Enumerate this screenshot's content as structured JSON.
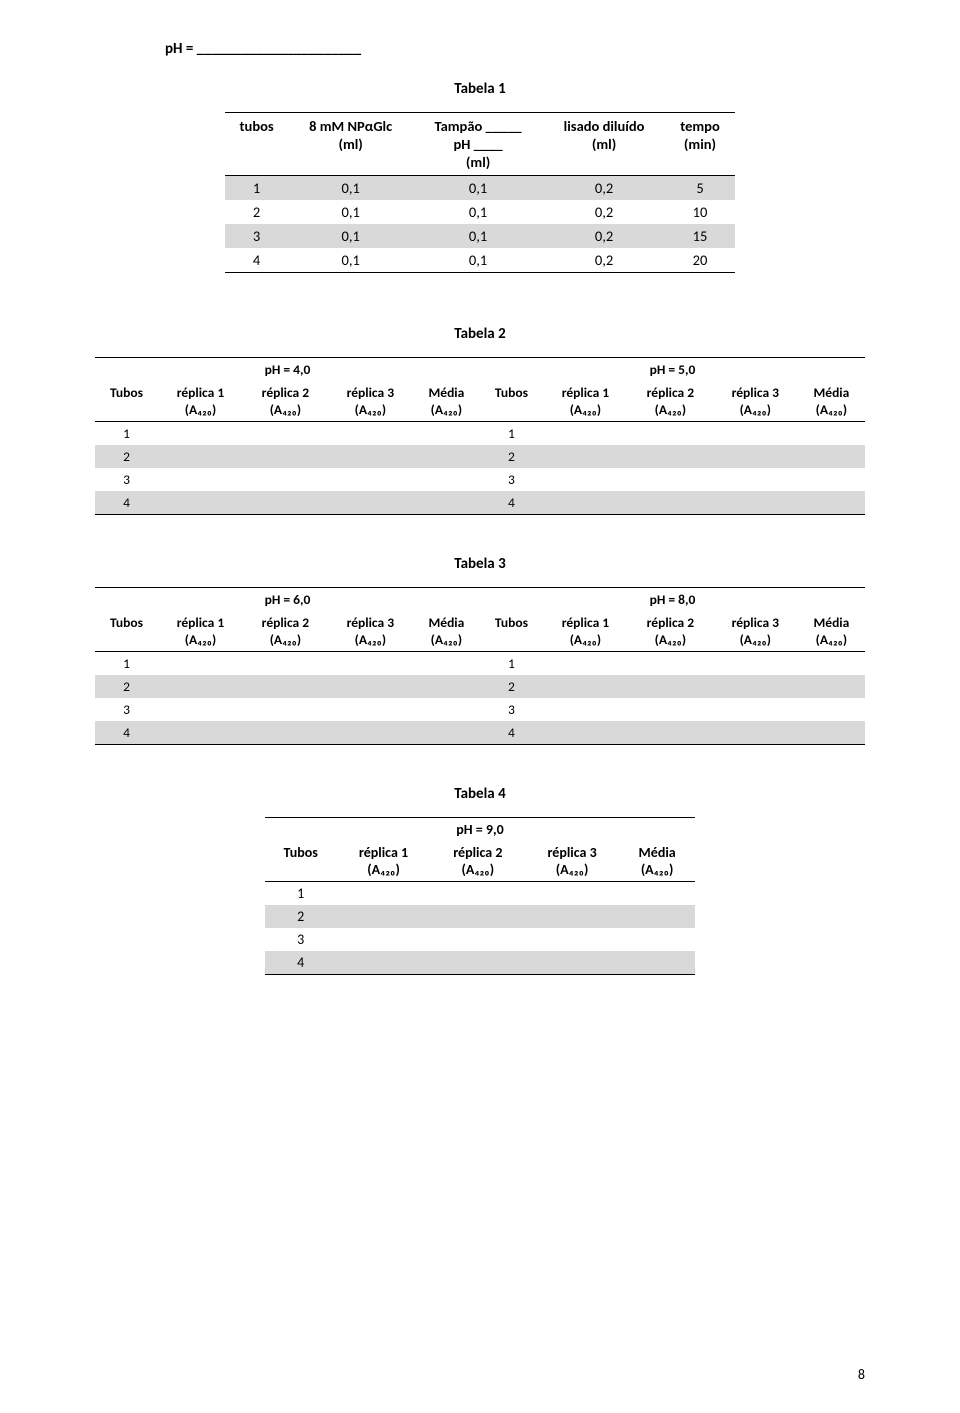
{
  "ph_label": "pH = ______________________",
  "page_number": "8",
  "table1": {
    "caption": "Tabela 1",
    "headers": [
      {
        "l1": "tubos",
        "l2": "",
        "l3": ""
      },
      {
        "l1": "8 mM NPαGlc",
        "l2": "(ml)",
        "l3": ""
      },
      {
        "l1": "Tampão _____",
        "l2": "pH ____",
        "l3": "(ml)"
      },
      {
        "l1": "lisado diluído",
        "l2": "(ml)",
        "l3": ""
      },
      {
        "l1": "tempo",
        "l2": "(min)",
        "l3": ""
      }
    ],
    "rows": [
      [
        "1",
        "0,1",
        "0,1",
        "0,2",
        "5"
      ],
      [
        "2",
        "0,1",
        "0,1",
        "0,2",
        "10"
      ],
      [
        "3",
        "0,1",
        "0,1",
        "0,2",
        "15"
      ],
      [
        "4",
        "0,1",
        "0,1",
        "0,2",
        "20"
      ]
    ],
    "gray_rows": [
      0,
      2
    ]
  },
  "wide_tables": [
    {
      "caption": "Tabela 2",
      "left_ph": "pH = 4,0",
      "right_ph": "pH = 5,0"
    },
    {
      "caption": "Tabela 3",
      "left_ph": "pH = 6,0",
      "right_ph": "pH = 8,0"
    }
  ],
  "wide_col_headers_left": [
    {
      "l1": "Tubos",
      "l2": ""
    },
    {
      "l1": "réplica 1",
      "l2": "(A₄₂₀)"
    },
    {
      "l1": "réplica 2",
      "l2": "(A₄₂₀)"
    },
    {
      "l1": "réplica 3",
      "l2": "(A₄₂₀)"
    },
    {
      "l1": "Média",
      "l2": "(A₄₂₀)"
    }
  ],
  "wide_col_headers_right": [
    {
      "l1": "Tubos",
      "l2": ""
    },
    {
      "l1": "réplica 1",
      "l2": "(A₄₂₀)"
    },
    {
      "l1": "réplica 2",
      "l2": "(A₄₂₀)"
    },
    {
      "l1": "réplica 3",
      "l2": "(A₄₂₀)"
    },
    {
      "l1": "Média",
      "l2": "(A₄₂₀)"
    }
  ],
  "wide_row_labels_left": [
    "1",
    "2",
    "3",
    "4"
  ],
  "wide_row_labels_right": [
    "1",
    "2",
    "3",
    "4"
  ],
  "wide_gray_rows": [
    1,
    3
  ],
  "table4": {
    "caption": "Tabela 4",
    "ph": "pH = 9,0",
    "headers": [
      {
        "l1": "Tubos",
        "l2": ""
      },
      {
        "l1": "réplica 1",
        "l2": "(A₄₂₀)"
      },
      {
        "l1": "réplica 2",
        "l2": "(A₄₂₀)"
      },
      {
        "l1": "réplica 3",
        "l2": "(A₄₂₀)"
      },
      {
        "l1": "Média",
        "l2": "(A₄₂₀)"
      }
    ],
    "row_labels": [
      "1",
      "2",
      "3",
      "4"
    ],
    "gray_rows": [
      1,
      3
    ]
  },
  "colors": {
    "gray": "#d9d9d9",
    "text": "#000000",
    "bg": "#ffffff"
  }
}
